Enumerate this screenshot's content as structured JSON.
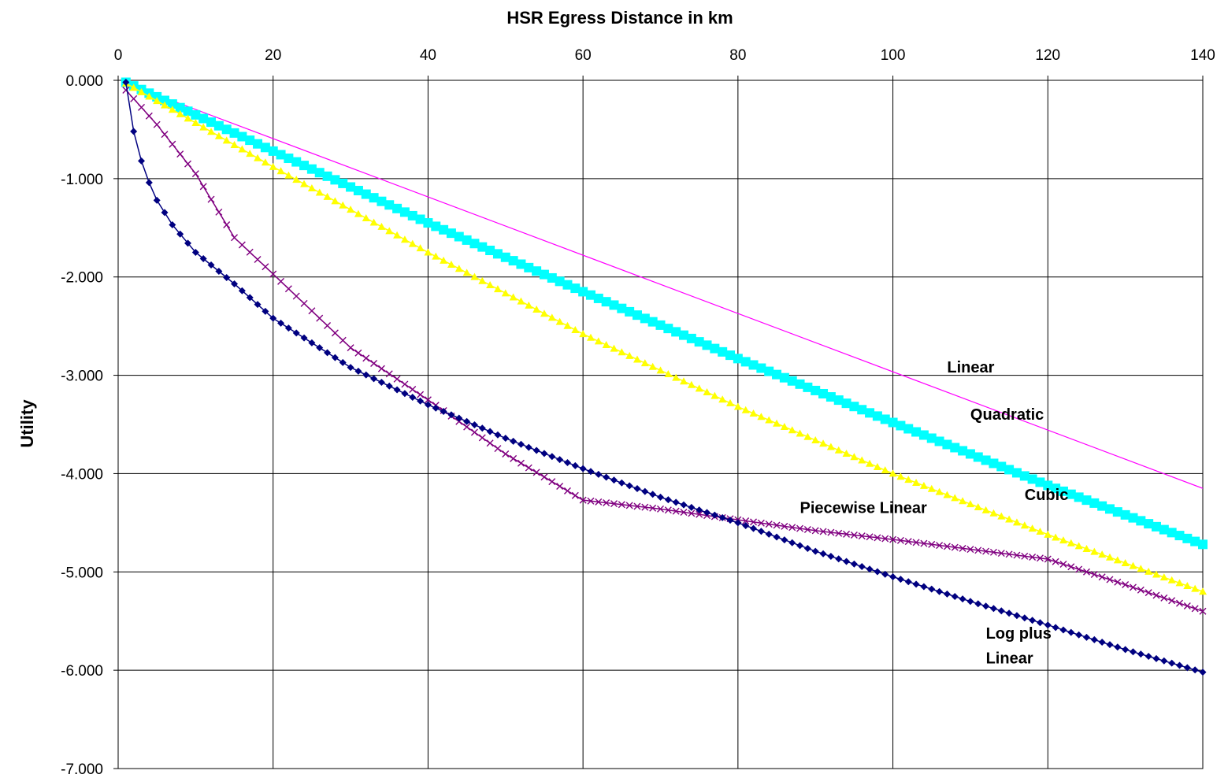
{
  "chart_data": {
    "type": "line",
    "title": "HSR Egress Distance in km",
    "xlabel": "",
    "ylabel": "Utility",
    "xlim": [
      0,
      140
    ],
    "ylim": [
      -7,
      0
    ],
    "x_axis_position": "top",
    "grid": true,
    "legend": "none",
    "x_ticks": [
      "0",
      "20",
      "40",
      "60",
      "80",
      "100",
      "120",
      "140"
    ],
    "y_ticks": [
      "0.000",
      "-1.000",
      "-2.000",
      "-3.000",
      "-4.000",
      "-5.000",
      "-6.000",
      "-7.000"
    ],
    "x_range": {
      "start": 1,
      "end": 140,
      "step": 1
    },
    "series": [
      {
        "key": "linear",
        "label": "Linear",
        "color": "#ff00ff",
        "marker": "none",
        "points": [
          [
            1,
            -0.03
          ],
          [
            140,
            -4.15
          ]
        ]
      },
      {
        "key": "quadratic",
        "label": "Quadratic",
        "color": "#00ffff",
        "marker": "square",
        "points": [
          [
            1,
            -0.02
          ],
          [
            20,
            -0.72
          ],
          [
            40,
            -1.45
          ],
          [
            60,
            -2.15
          ],
          [
            80,
            -2.83
          ],
          [
            100,
            -3.48
          ],
          [
            120,
            -4.12
          ],
          [
            140,
            -4.72
          ]
        ]
      },
      {
        "key": "cubic",
        "label": "Cubic",
        "color": "#ffff00",
        "marker": "triangle",
        "points": [
          [
            1,
            -0.03
          ],
          [
            20,
            -0.88
          ],
          [
            40,
            -1.75
          ],
          [
            60,
            -2.58
          ],
          [
            80,
            -3.32
          ],
          [
            100,
            -4.0
          ],
          [
            120,
            -4.62
          ],
          [
            140,
            -5.2
          ]
        ]
      },
      {
        "key": "piecewise",
        "label": "Piecewise Linear",
        "color": "#800080",
        "marker": "x",
        "points": [
          [
            1,
            -0.1
          ],
          [
            5,
            -0.45
          ],
          [
            10,
            -0.95
          ],
          [
            15,
            -1.6
          ],
          [
            20,
            -1.97
          ],
          [
            30,
            -2.72
          ],
          [
            40,
            -3.25
          ],
          [
            50,
            -3.8
          ],
          [
            60,
            -4.27
          ],
          [
            70,
            -4.36
          ],
          [
            80,
            -4.47
          ],
          [
            90,
            -4.58
          ],
          [
            100,
            -4.67
          ],
          [
            110,
            -4.77
          ],
          [
            120,
            -4.87
          ],
          [
            130,
            -5.13
          ],
          [
            140,
            -5.4
          ]
        ]
      },
      {
        "key": "logplus",
        "label": "Log plus Linear",
        "color": "#000080",
        "marker": "diamond",
        "points": [
          [
            1,
            -0.02
          ],
          [
            2,
            -0.52
          ],
          [
            3,
            -0.82
          ],
          [
            4,
            -1.04
          ],
          [
            5,
            -1.22
          ],
          [
            7,
            -1.47
          ],
          [
            10,
            -1.75
          ],
          [
            15,
            -2.07
          ],
          [
            20,
            -2.42
          ],
          [
            30,
            -2.92
          ],
          [
            40,
            -3.3
          ],
          [
            50,
            -3.64
          ],
          [
            60,
            -3.95
          ],
          [
            70,
            -4.24
          ],
          [
            80,
            -4.5
          ],
          [
            90,
            -4.79
          ],
          [
            100,
            -5.05
          ],
          [
            110,
            -5.3
          ],
          [
            120,
            -5.54
          ],
          [
            130,
            -5.79
          ],
          [
            140,
            -6.02
          ]
        ]
      }
    ],
    "annotations": [
      {
        "key": "linear",
        "text": "Linear",
        "x": 107,
        "y": -2.97
      },
      {
        "key": "quadratic",
        "text": "Quadratic",
        "x": 110,
        "y": -3.45
      },
      {
        "key": "cubic",
        "text": "Cubic",
        "x": 117,
        "y": -4.27
      },
      {
        "key": "piecewise",
        "text": "Piecewise Linear",
        "x": 88,
        "y": -4.4
      },
      {
        "key": "logplus1",
        "text": "Log plus",
        "x": 112,
        "y": -5.68
      },
      {
        "key": "logplus2",
        "text": "Linear",
        "x": 112,
        "y": -5.93
      }
    ]
  }
}
